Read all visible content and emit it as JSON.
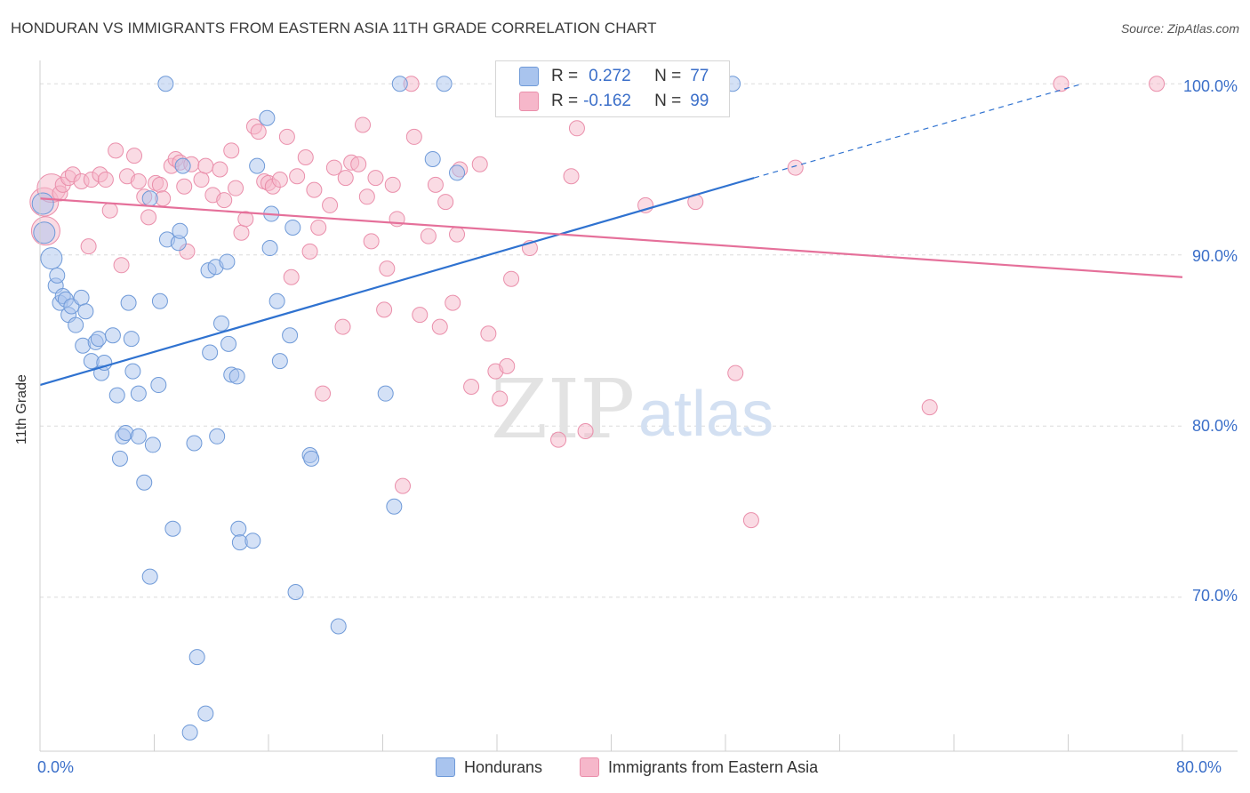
{
  "header": {
    "title": "HONDURAN VS IMMIGRANTS FROM EASTERN ASIA 11TH GRADE CORRELATION CHART",
    "source": "Source: ZipAtlas.com"
  },
  "legend": {
    "rows": [
      {
        "r_label": "R =",
        "r_value": "0.272",
        "n_label": "N =",
        "n_value": "77"
      },
      {
        "r_label": "R =",
        "r_value": "-0.162",
        "n_label": "N =",
        "n_value": "99"
      }
    ]
  },
  "watermark": {
    "zip": "ZIP",
    "atlas": "atlas"
  },
  "colors": {
    "hondurans_fill": "#a9c4ee",
    "hondurans_stroke": "#6f9ad8",
    "hondurans_line": "#2f72d0",
    "asia_fill": "#f6b7ca",
    "asia_stroke": "#ea8fab",
    "asia_line": "#e5709a",
    "tick_text": "#3b6fc9"
  },
  "chart_data": {
    "type": "scatter",
    "title": "HONDURAN VS IMMIGRANTS FROM EASTERN ASIA 11TH GRADE CORRELATION CHART",
    "xlabel": "",
    "ylabel": "11th Grade",
    "xlim": [
      0,
      80
    ],
    "ylim": [
      61,
      101
    ],
    "x_tick_labels": [
      "0.0%",
      "80.0%"
    ],
    "y_ticks": [
      70,
      80,
      90,
      100
    ],
    "y_tick_labels": [
      "70.0%",
      "80.0%",
      "90.0%",
      "100.0%"
    ],
    "grid": true,
    "legend_position": "bottom",
    "series": [
      {
        "name": "Hondurans",
        "r": 0.272,
        "n": 77,
        "trend": {
          "x": [
            0,
            50
          ],
          "y": [
            82.4,
            94.5
          ],
          "dashed_to": [
            73,
            100
          ]
        },
        "points": [
          [
            0.2,
            93.0
          ],
          [
            0.3,
            91.3
          ],
          [
            0.8,
            89.8
          ],
          [
            1.1,
            88.2
          ],
          [
            1.2,
            88.8
          ],
          [
            1.4,
            87.2
          ],
          [
            1.6,
            87.6
          ],
          [
            1.8,
            87.4
          ],
          [
            2.0,
            86.5
          ],
          [
            2.2,
            87.0
          ],
          [
            2.5,
            85.9
          ],
          [
            2.9,
            87.5
          ],
          [
            3.2,
            86.7
          ],
          [
            3.0,
            84.7
          ],
          [
            3.6,
            83.8
          ],
          [
            3.9,
            84.9
          ],
          [
            4.1,
            85.1
          ],
          [
            4.3,
            83.1
          ],
          [
            4.5,
            83.7
          ],
          [
            5.1,
            85.3
          ],
          [
            5.4,
            81.8
          ],
          [
            5.8,
            79.4
          ],
          [
            5.6,
            78.1
          ],
          [
            6.0,
            79.6
          ],
          [
            6.2,
            87.2
          ],
          [
            6.4,
            85.1
          ],
          [
            6.5,
            83.2
          ],
          [
            6.9,
            81.9
          ],
          [
            6.9,
            79.4
          ],
          [
            7.3,
            76.7
          ],
          [
            7.7,
            93.3
          ],
          [
            7.7,
            71.2
          ],
          [
            7.9,
            78.9
          ],
          [
            8.4,
            87.3
          ],
          [
            8.3,
            82.4
          ],
          [
            8.8,
            100.0
          ],
          [
            8.9,
            90.9
          ],
          [
            9.3,
            74.0
          ],
          [
            9.7,
            90.7
          ],
          [
            9.8,
            91.4
          ],
          [
            10.0,
            95.2
          ],
          [
            10.5,
            62.1
          ],
          [
            10.8,
            79.0
          ],
          [
            11.0,
            66.5
          ],
          [
            11.6,
            63.2
          ],
          [
            11.8,
            89.1
          ],
          [
            11.9,
            84.3
          ],
          [
            12.3,
            89.3
          ],
          [
            12.4,
            79.4
          ],
          [
            12.7,
            86.0
          ],
          [
            13.1,
            89.6
          ],
          [
            13.2,
            84.8
          ],
          [
            13.4,
            83.0
          ],
          [
            13.8,
            82.9
          ],
          [
            13.9,
            74.0
          ],
          [
            14.0,
            73.2
          ],
          [
            14.9,
            73.3
          ],
          [
            15.2,
            95.2
          ],
          [
            15.9,
            98.0
          ],
          [
            16.1,
            90.4
          ],
          [
            16.2,
            92.4
          ],
          [
            16.6,
            87.3
          ],
          [
            16.8,
            83.8
          ],
          [
            17.5,
            85.3
          ],
          [
            17.7,
            91.6
          ],
          [
            17.9,
            70.3
          ],
          [
            18.9,
            78.3
          ],
          [
            19.0,
            78.1
          ],
          [
            20.9,
            68.3
          ],
          [
            24.2,
            81.9
          ],
          [
            24.8,
            75.3
          ],
          [
            25.2,
            100.0
          ],
          [
            27.5,
            95.6
          ],
          [
            28.3,
            100.0
          ],
          [
            29.2,
            94.8
          ],
          [
            33.3,
            100.0
          ],
          [
            35.7,
            100.0
          ],
          [
            48.5,
            100.0
          ]
        ]
      },
      {
        "name": "Immigrants from Eastern Asia",
        "r": -0.162,
        "n": 99,
        "trend": {
          "x": [
            0,
            80
          ],
          "y": [
            93.3,
            88.7
          ]
        },
        "points": [
          [
            0.3,
            93.1
          ],
          [
            0.4,
            91.4
          ],
          [
            0.8,
            93.9
          ],
          [
            1.4,
            93.6
          ],
          [
            1.6,
            94.1
          ],
          [
            2.0,
            94.5
          ],
          [
            2.3,
            94.7
          ],
          [
            2.9,
            94.3
          ],
          [
            3.4,
            90.5
          ],
          [
            3.6,
            94.4
          ],
          [
            4.2,
            94.7
          ],
          [
            4.6,
            94.4
          ],
          [
            4.9,
            92.6
          ],
          [
            5.3,
            96.1
          ],
          [
            5.7,
            89.4
          ],
          [
            6.1,
            94.6
          ],
          [
            6.6,
            95.8
          ],
          [
            6.9,
            94.3
          ],
          [
            7.3,
            93.4
          ],
          [
            7.6,
            92.2
          ],
          [
            8.1,
            94.2
          ],
          [
            8.4,
            94.1
          ],
          [
            8.6,
            93.3
          ],
          [
            9.2,
            95.2
          ],
          [
            9.5,
            95.6
          ],
          [
            9.8,
            95.4
          ],
          [
            10.1,
            94.0
          ],
          [
            10.3,
            90.2
          ],
          [
            10.6,
            95.3
          ],
          [
            11.3,
            94.4
          ],
          [
            11.6,
            95.2
          ],
          [
            12.1,
            93.5
          ],
          [
            12.6,
            95.0
          ],
          [
            12.9,
            93.2
          ],
          [
            13.4,
            96.1
          ],
          [
            13.7,
            93.9
          ],
          [
            14.1,
            91.3
          ],
          [
            14.4,
            92.1
          ],
          [
            15.0,
            97.5
          ],
          [
            15.3,
            97.2
          ],
          [
            15.7,
            94.3
          ],
          [
            16.0,
            94.2
          ],
          [
            16.3,
            94.0
          ],
          [
            16.8,
            94.4
          ],
          [
            17.3,
            96.9
          ],
          [
            17.6,
            88.7
          ],
          [
            18.0,
            94.6
          ],
          [
            18.6,
            95.7
          ],
          [
            18.9,
            90.2
          ],
          [
            19.2,
            93.8
          ],
          [
            19.5,
            91.6
          ],
          [
            19.8,
            81.9
          ],
          [
            20.3,
            92.9
          ],
          [
            20.6,
            95.1
          ],
          [
            21.2,
            85.8
          ],
          [
            21.4,
            94.5
          ],
          [
            21.8,
            95.4
          ],
          [
            22.3,
            95.3
          ],
          [
            22.6,
            97.6
          ],
          [
            22.9,
            93.4
          ],
          [
            23.2,
            90.8
          ],
          [
            23.5,
            94.5
          ],
          [
            24.1,
            86.8
          ],
          [
            24.3,
            89.2
          ],
          [
            24.7,
            94.1
          ],
          [
            25.0,
            92.1
          ],
          [
            25.4,
            76.5
          ],
          [
            26.0,
            100.0
          ],
          [
            26.2,
            96.9
          ],
          [
            26.6,
            86.5
          ],
          [
            27.2,
            91.1
          ],
          [
            27.7,
            94.1
          ],
          [
            28.0,
            85.8
          ],
          [
            28.4,
            93.1
          ],
          [
            28.9,
            87.2
          ],
          [
            29.2,
            91.2
          ],
          [
            29.4,
            95.0
          ],
          [
            30.2,
            82.3
          ],
          [
            30.8,
            95.3
          ],
          [
            31.4,
            85.4
          ],
          [
            31.9,
            83.2
          ],
          [
            32.2,
            81.6
          ],
          [
            32.7,
            83.5
          ],
          [
            33.0,
            88.6
          ],
          [
            34.3,
            90.4
          ],
          [
            36.3,
            79.2
          ],
          [
            37.2,
            94.6
          ],
          [
            37.6,
            97.4
          ],
          [
            38.2,
            79.7
          ],
          [
            38.5,
            100.0
          ],
          [
            42.4,
            92.9
          ],
          [
            45.9,
            93.1
          ],
          [
            48.7,
            83.1
          ],
          [
            49.8,
            74.5
          ],
          [
            52.9,
            95.1
          ],
          [
            62.3,
            81.1
          ],
          [
            71.5,
            100.0
          ],
          [
            78.2,
            100.0
          ],
          [
            35.0,
            100.0
          ]
        ]
      }
    ]
  },
  "bottom_legend": {
    "items": [
      "Hondurans",
      "Immigrants from Eastern Asia"
    ]
  }
}
